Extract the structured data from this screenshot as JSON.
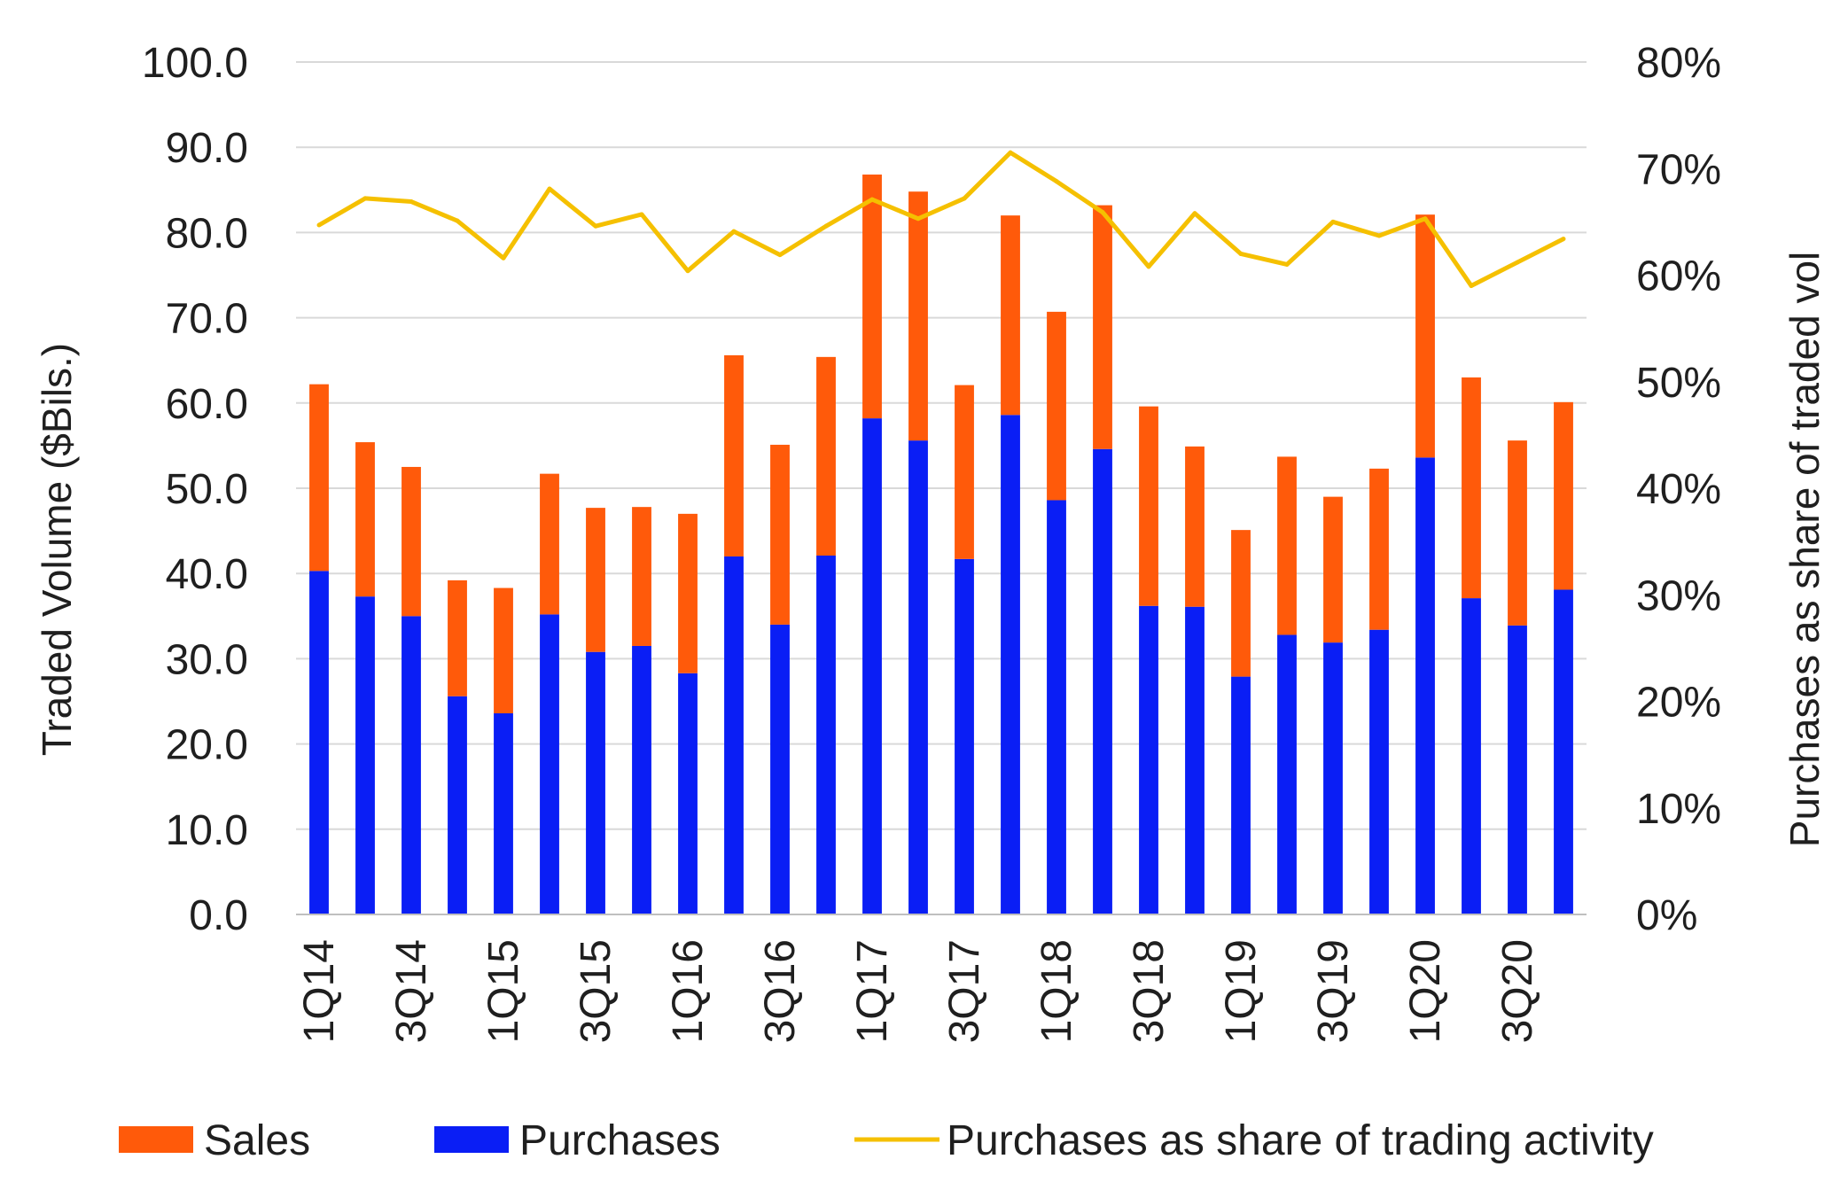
{
  "chart_data": {
    "type": "bar",
    "stacked": true,
    "x_tick_labels": [
      "1Q14",
      "3Q14",
      "1Q15",
      "3Q15",
      "1Q16",
      "3Q16",
      "1Q17",
      "3Q17",
      "1Q18",
      "3Q18",
      "1Q19",
      "3Q19",
      "1Q20",
      "3Q20"
    ],
    "series": [
      {
        "name": "Purchases",
        "kind": "bar",
        "axis": "left",
        "color": "#0a1ef5",
        "values": [
          40.3,
          37.3,
          35.0,
          25.6,
          23.6,
          35.2,
          30.8,
          31.5,
          28.3,
          42.0,
          34.0,
          42.1,
          58.2,
          55.6,
          41.7,
          58.6,
          48.6,
          54.6,
          36.2,
          36.1,
          27.9,
          32.8,
          31.9,
          33.4,
          53.6,
          37.1,
          33.9,
          38.1
        ]
      },
      {
        "name": "Sales",
        "kind": "bar",
        "axis": "left",
        "color": "#ff5a0a",
        "values": [
          21.9,
          18.1,
          17.5,
          13.6,
          14.7,
          16.5,
          16.9,
          16.3,
          18.7,
          23.6,
          21.1,
          23.3,
          28.6,
          29.2,
          20.4,
          23.4,
          22.1,
          28.6,
          23.4,
          18.8,
          17.2,
          20.9,
          17.1,
          18.9,
          28.5,
          25.9,
          21.7,
          22.0
        ]
      },
      {
        "name": "Purchases as share of trading activity",
        "kind": "line",
        "axis": "right",
        "color": "#f5c000",
        "values": [
          64.7,
          67.2,
          66.9,
          65.1,
          61.6,
          68.1,
          64.6,
          65.7,
          60.4,
          64.1,
          61.9,
          64.6,
          67.1,
          65.3,
          67.2,
          71.5,
          68.8,
          65.9,
          60.8,
          65.8,
          62.0,
          61.0,
          65.0,
          63.7,
          65.3,
          59.0,
          61.2,
          63.4
        ]
      }
    ],
    "ylabel": "Traded Volume ($Bils.)",
    "y_ticks": [
      "0.0",
      "10.0",
      "20.0",
      "30.0",
      "40.0",
      "50.0",
      "60.0",
      "70.0",
      "80.0",
      "90.0",
      "100.0"
    ],
    "ylim": [
      0,
      100
    ],
    "y2label": "Purchases as share of traded vol",
    "y2_ticks": [
      "0%",
      "10%",
      "20%",
      "30%",
      "40%",
      "50%",
      "60%",
      "70%",
      "80%"
    ],
    "y2lim": [
      0,
      80
    ],
    "grid": "horizontal",
    "legend_position": "bottom",
    "legend": [
      {
        "label": "Sales",
        "swatch": "bar",
        "color": "#ff5a0a"
      },
      {
        "label": "Purchases",
        "swatch": "bar",
        "color": "#0a1ef5"
      },
      {
        "label": "Purchases as share of trading activity",
        "swatch": "line",
        "color": "#f5c000"
      }
    ]
  }
}
